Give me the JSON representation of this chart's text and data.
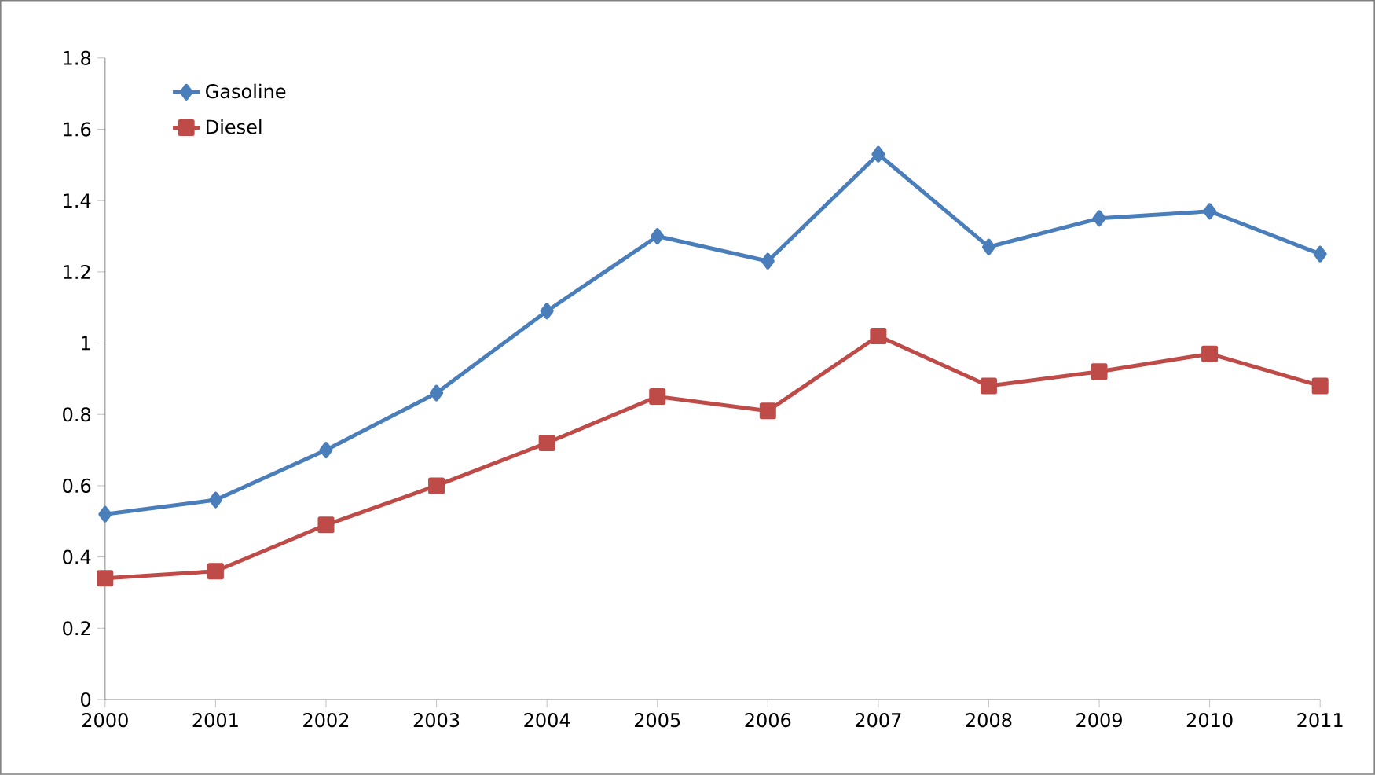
{
  "chart_data": {
    "type": "line",
    "categories": [
      "2000",
      "2001",
      "2002",
      "2003",
      "2004",
      "2005",
      "2006",
      "2007",
      "2008",
      "2009",
      "2010",
      "2011"
    ],
    "series": [
      {
        "name": "Gasoline",
        "color": "#4a7ebb",
        "marker": "diamond",
        "values": [
          0.52,
          0.56,
          0.7,
          0.86,
          1.09,
          1.3,
          1.23,
          1.53,
          1.27,
          1.35,
          1.37,
          1.25
        ]
      },
      {
        "name": "Diesel",
        "color": "#be4b48",
        "marker": "square",
        "values": [
          0.34,
          0.36,
          0.49,
          0.6,
          0.72,
          0.85,
          0.81,
          1.02,
          0.88,
          0.92,
          0.97,
          0.88
        ]
      }
    ],
    "ylim": [
      0,
      1.8
    ],
    "yticks": [
      0,
      0.2,
      0.4,
      0.6,
      0.8,
      1,
      1.2,
      1.4,
      1.6,
      1.8
    ],
    "grid": false,
    "legend": "top left",
    "line_style": "solid"
  }
}
